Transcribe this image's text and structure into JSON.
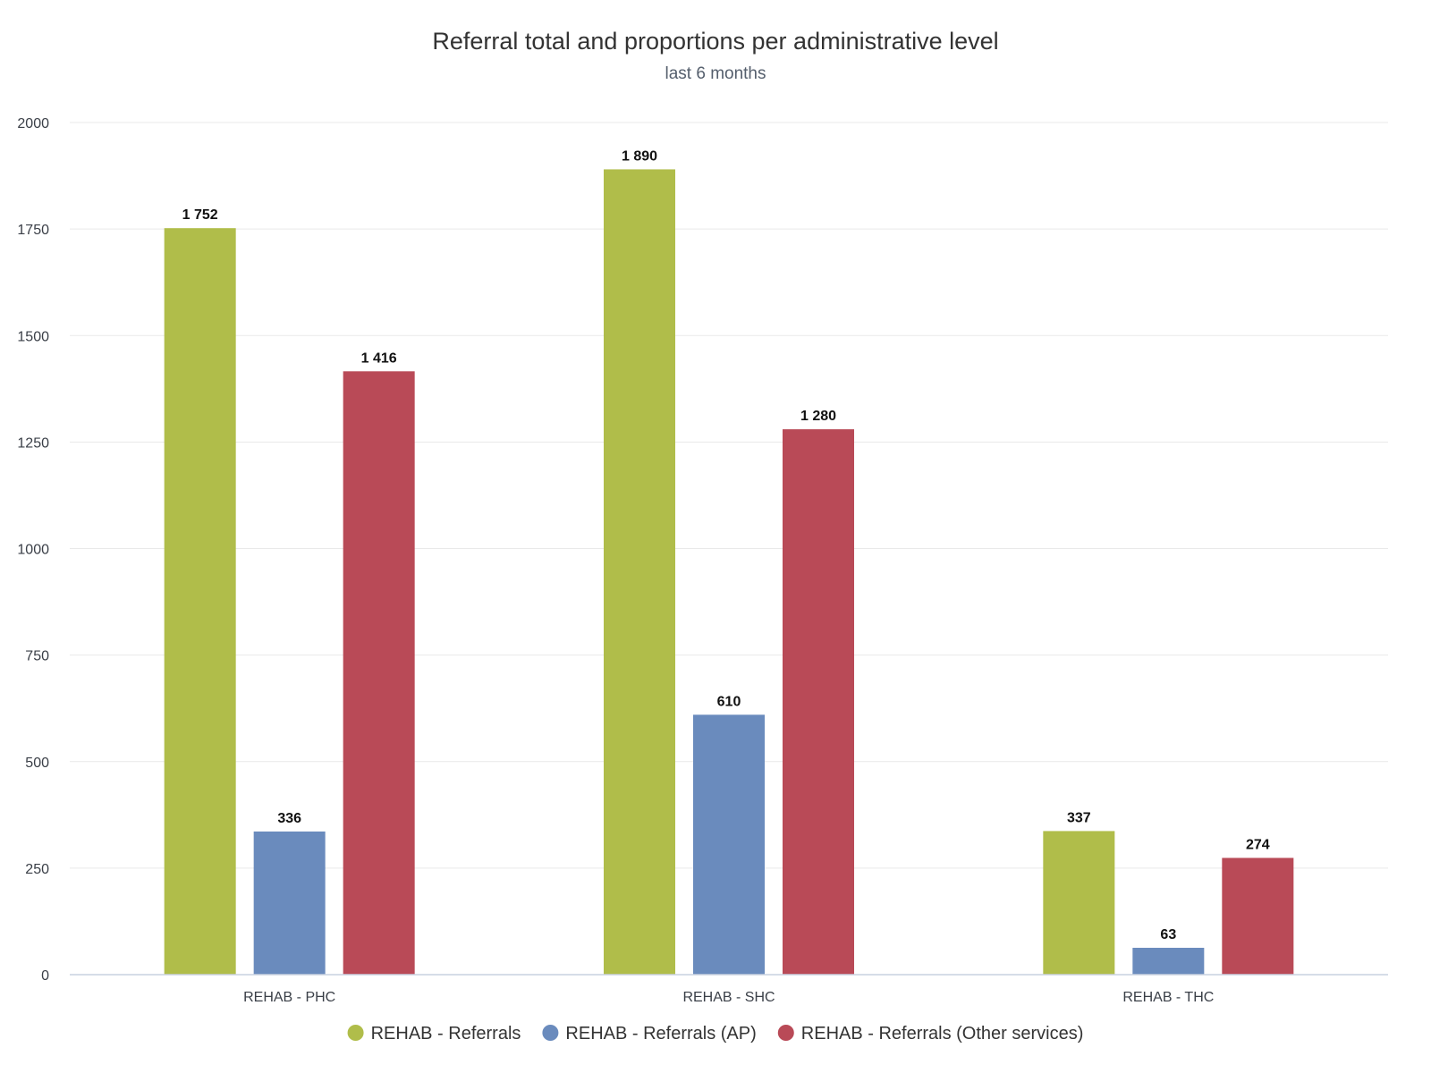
{
  "chart_data": {
    "type": "bar",
    "title": "Referral total and proportions per administrative level",
    "subtitle": "last 6 months",
    "categories": [
      "REHAB - PHC",
      "REHAB - SHC",
      "REHAB - THC"
    ],
    "series": [
      {
        "name": "REHAB - Referrals",
        "color": "#b0bd4a",
        "values": [
          1752,
          1890,
          337
        ],
        "labels": [
          "1 752",
          "1 890",
          "337"
        ]
      },
      {
        "name": "REHAB - Referrals (AP)",
        "color": "#6a8bbd",
        "values": [
          336,
          610,
          63
        ],
        "labels": [
          "336",
          "610",
          "63"
        ]
      },
      {
        "name": "REHAB - Referrals (Other services)",
        "color": "#b94a57",
        "values": [
          1416,
          1280,
          274
        ],
        "labels": [
          "1 416",
          "1 280",
          "274"
        ]
      }
    ],
    "yticks": [
      "0",
      "250",
      "500",
      "750",
      "1000",
      "1250",
      "1500",
      "1750",
      "2000"
    ],
    "ylim": [
      0,
      2000
    ],
    "grid": true,
    "legend": "bottom-center"
  }
}
